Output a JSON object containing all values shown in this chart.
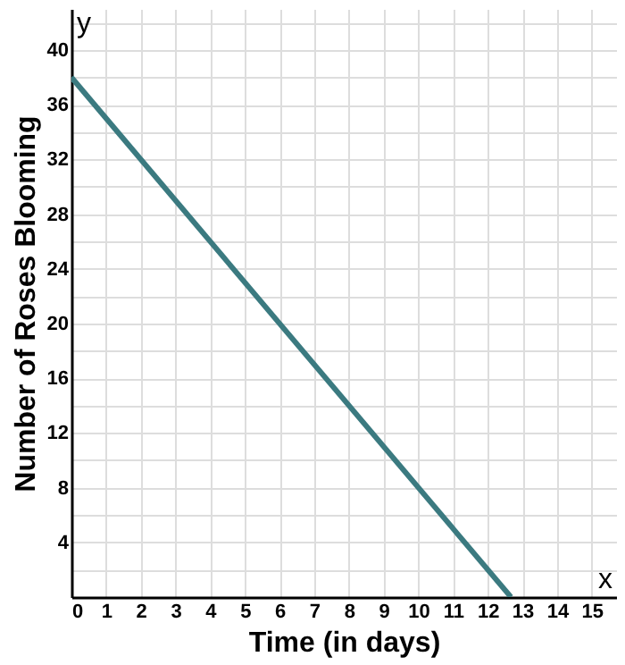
{
  "chart_data": {
    "type": "line",
    "xlabel": "Time (in days)",
    "ylabel": "Number of Roses Blooming",
    "x": [
      0,
      12.67
    ],
    "series": [
      {
        "color": "#3b7a80",
        "values": [
          38,
          0
        ]
      }
    ],
    "xlim": [
      0,
      15.7
    ],
    "ylim": [
      0,
      43
    ],
    "xticks": [
      0,
      1,
      2,
      3,
      4,
      5,
      6,
      7,
      8,
      9,
      10,
      11,
      12,
      13,
      14,
      15
    ],
    "yticks": [
      {
        "value": 2,
        "label": null
      },
      4,
      {
        "value": 6,
        "label": null
      },
      8,
      {
        "value": 10,
        "label": null
      },
      12,
      {
        "value": 14,
        "label": null
      },
      16,
      {
        "value": 18,
        "label": null
      },
      20,
      {
        "value": 22,
        "label": null
      },
      24,
      {
        "value": 26,
        "label": null
      },
      28,
      {
        "value": 30,
        "label": null
      },
      32,
      {
        "value": 34,
        "label": null
      },
      36,
      {
        "value": 38,
        "label": null
      },
      40,
      {
        "value": 42,
        "label": null
      }
    ],
    "grid": true,
    "marker": "none",
    "line_style": "solid",
    "annotations": [
      "x",
      "y"
    ]
  }
}
